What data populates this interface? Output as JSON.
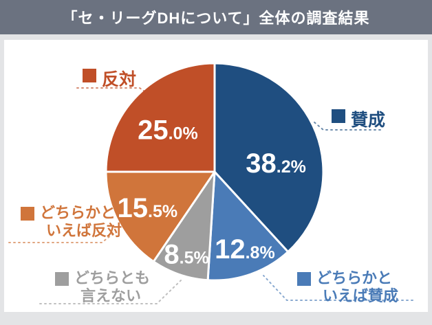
{
  "header": {
    "title": "「セ・リーグDHについて」全体の調査結果"
  },
  "chart_data": {
    "type": "pie",
    "title": "「セ・リーグDHについて」全体の調査結果",
    "unit": "%",
    "start_angle": "top",
    "direction": "clockwise",
    "total": 100.0,
    "slices": [
      {
        "id": "sansei",
        "label": "賛成",
        "value": 38.2,
        "color": "#1F4E80",
        "legend_lines": [
          "賛成"
        ]
      },
      {
        "id": "dochiraka-sansei",
        "label": "どちらかといえば賛成",
        "value": 12.8,
        "color": "#4A7BB7",
        "legend_lines": [
          "どちらかと",
          "いえば賛成"
        ]
      },
      {
        "id": "dochira-tomo",
        "label": "どちらとも言えない",
        "value": 8.5,
        "color": "#9E9E9E",
        "legend_lines": [
          "どちらとも",
          "言えない"
        ]
      },
      {
        "id": "dochiraka-hantai",
        "label": "どちらかといえば反対",
        "value": 15.5,
        "color": "#D0753B",
        "legend_lines": [
          "どちらかと",
          "いえば反対"
        ]
      },
      {
        "id": "hantai",
        "label": "反対",
        "value": 25.0,
        "color": "#C04F28",
        "legend_lines": [
          "反対"
        ]
      }
    ]
  },
  "colors": {
    "header_bg": "#6B7280",
    "page_bg": "#E3E4E6",
    "panel_bg": "#FFFFFF",
    "slice_label_text": "#FFFFFF",
    "slice_border": "#FFFFFF"
  }
}
